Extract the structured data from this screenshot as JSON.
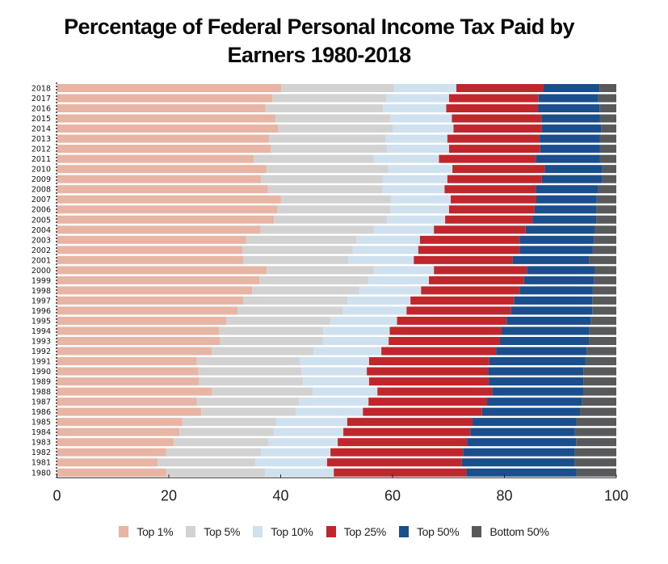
{
  "chart_data": {
    "type": "bar",
    "orientation": "horizontal",
    "stacked": true,
    "title": "Percentage of Federal Personal Income Tax Paid by Earners 1980-2018",
    "title_lines": [
      "Percentage of Federal Personal Income Tax Paid by",
      "Earners 1980-2018"
    ],
    "xlabel": "",
    "ylabel": "",
    "xlim": [
      0,
      100
    ],
    "xticks": [
      0,
      20,
      40,
      60,
      80,
      100
    ],
    "grid": false,
    "legend_position": "bottom",
    "categories": [
      "2018",
      "2017",
      "2016",
      "2015",
      "2014",
      "2013",
      "2012",
      "2011",
      "2010",
      "2009",
      "2008",
      "2007",
      "2006",
      "2005",
      "2004",
      "2003",
      "2002",
      "2001",
      "2000",
      "1999",
      "1998",
      "1997",
      "1996",
      "1995",
      "1994",
      "1993",
      "1992",
      "1991",
      "1990",
      "1989",
      "1988",
      "1987",
      "1986",
      "1985",
      "1984",
      "1983",
      "1982",
      "1981",
      "1980"
    ],
    "cumulative_note": "values below are each group's individual share (%)",
    "series": [
      {
        "name": "Top 1%",
        "color": "#E8B4A4",
        "values": [
          40.1,
          38.5,
          37.3,
          39.1,
          39.5,
          37.9,
          38.2,
          35.2,
          37.5,
          36.5,
          37.7,
          40.0,
          39.4,
          38.8,
          36.4,
          33.8,
          33.2,
          33.3,
          37.5,
          36.2,
          34.9,
          33.3,
          32.3,
          30.3,
          29.0,
          29.1,
          27.7,
          25.0,
          25.3,
          25.4,
          27.7,
          25.0,
          25.8,
          22.4,
          21.9,
          20.9,
          19.5,
          18.0,
          19.5
        ]
      },
      {
        "name": "Top 5%",
        "color": "#D2D2D2",
        "values": [
          20.2,
          20.4,
          21.0,
          20.5,
          20.5,
          20.8,
          20.8,
          21.4,
          21.7,
          21.7,
          20.5,
          19.7,
          20.2,
          20.2,
          20.2,
          19.7,
          19.7,
          18.8,
          19.1,
          19.4,
          19.1,
          18.6,
          18.8,
          18.6,
          18.6,
          18.4,
          18.2,
          18.4,
          18.4,
          18.6,
          18.0,
          18.3,
          16.9,
          16.8,
          16.8,
          16.9,
          17.0,
          17.5,
          17.7
        ]
      },
      {
        "name": "Top 10%",
        "color": "#CFE0EE",
        "values": [
          11.1,
          11.2,
          11.3,
          11.0,
          10.9,
          11.1,
          11.1,
          11.7,
          11.5,
          11.6,
          11.1,
          10.7,
          10.5,
          10.4,
          10.8,
          11.4,
          11.7,
          11.7,
          10.8,
          10.9,
          11.1,
          11.3,
          11.4,
          11.9,
          11.9,
          11.8,
          12.1,
          12.4,
          11.7,
          11.8,
          11.6,
          12.4,
          12.0,
          12.7,
          12.5,
          12.4,
          12.4,
          12.8,
          12.3
        ]
      },
      {
        "name": "Top 25%",
        "color": "#C0272D",
        "values": [
          15.6,
          16.0,
          16.4,
          16.0,
          15.8,
          16.5,
          16.3,
          17.3,
          16.5,
          16.9,
          16.3,
          15.3,
          15.3,
          15.6,
          16.4,
          17.8,
          18.1,
          17.7,
          16.6,
          17.0,
          17.6,
          18.5,
          18.7,
          19.6,
          20.0,
          19.9,
          20.5,
          21.5,
          21.7,
          21.4,
          20.5,
          21.2,
          21.3,
          22.4,
          22.7,
          23.1,
          23.7,
          24.1,
          23.7
        ]
      },
      {
        "name": "Top 50%",
        "color": "#1B4E8C",
        "values": [
          10.0,
          10.7,
          11.0,
          10.5,
          10.6,
          10.8,
          10.7,
          11.5,
          10.3,
          10.8,
          11.2,
          10.8,
          11.1,
          11.4,
          12.3,
          13.3,
          13.1,
          13.6,
          12.1,
          12.5,
          13.1,
          14.0,
          14.5,
          15.0,
          15.7,
          15.9,
          16.2,
          17.2,
          17.0,
          16.9,
          16.4,
          17.0,
          17.5,
          18.6,
          18.7,
          19.5,
          20.0,
          20.1,
          19.7
        ]
      },
      {
        "name": "Bottom 50%",
        "color": "#58595B",
        "values": [
          3.0,
          3.2,
          3.0,
          2.9,
          2.7,
          2.9,
          2.9,
          2.9,
          2.5,
          2.5,
          3.2,
          3.5,
          3.5,
          3.6,
          3.9,
          4.0,
          4.2,
          4.9,
          3.9,
          4.0,
          4.2,
          4.3,
          4.3,
          4.6,
          4.8,
          4.9,
          5.3,
          5.5,
          5.9,
          5.9,
          5.8,
          6.1,
          6.5,
          7.1,
          7.4,
          7.2,
          7.4,
          7.5,
          7.1
        ]
      }
    ]
  }
}
